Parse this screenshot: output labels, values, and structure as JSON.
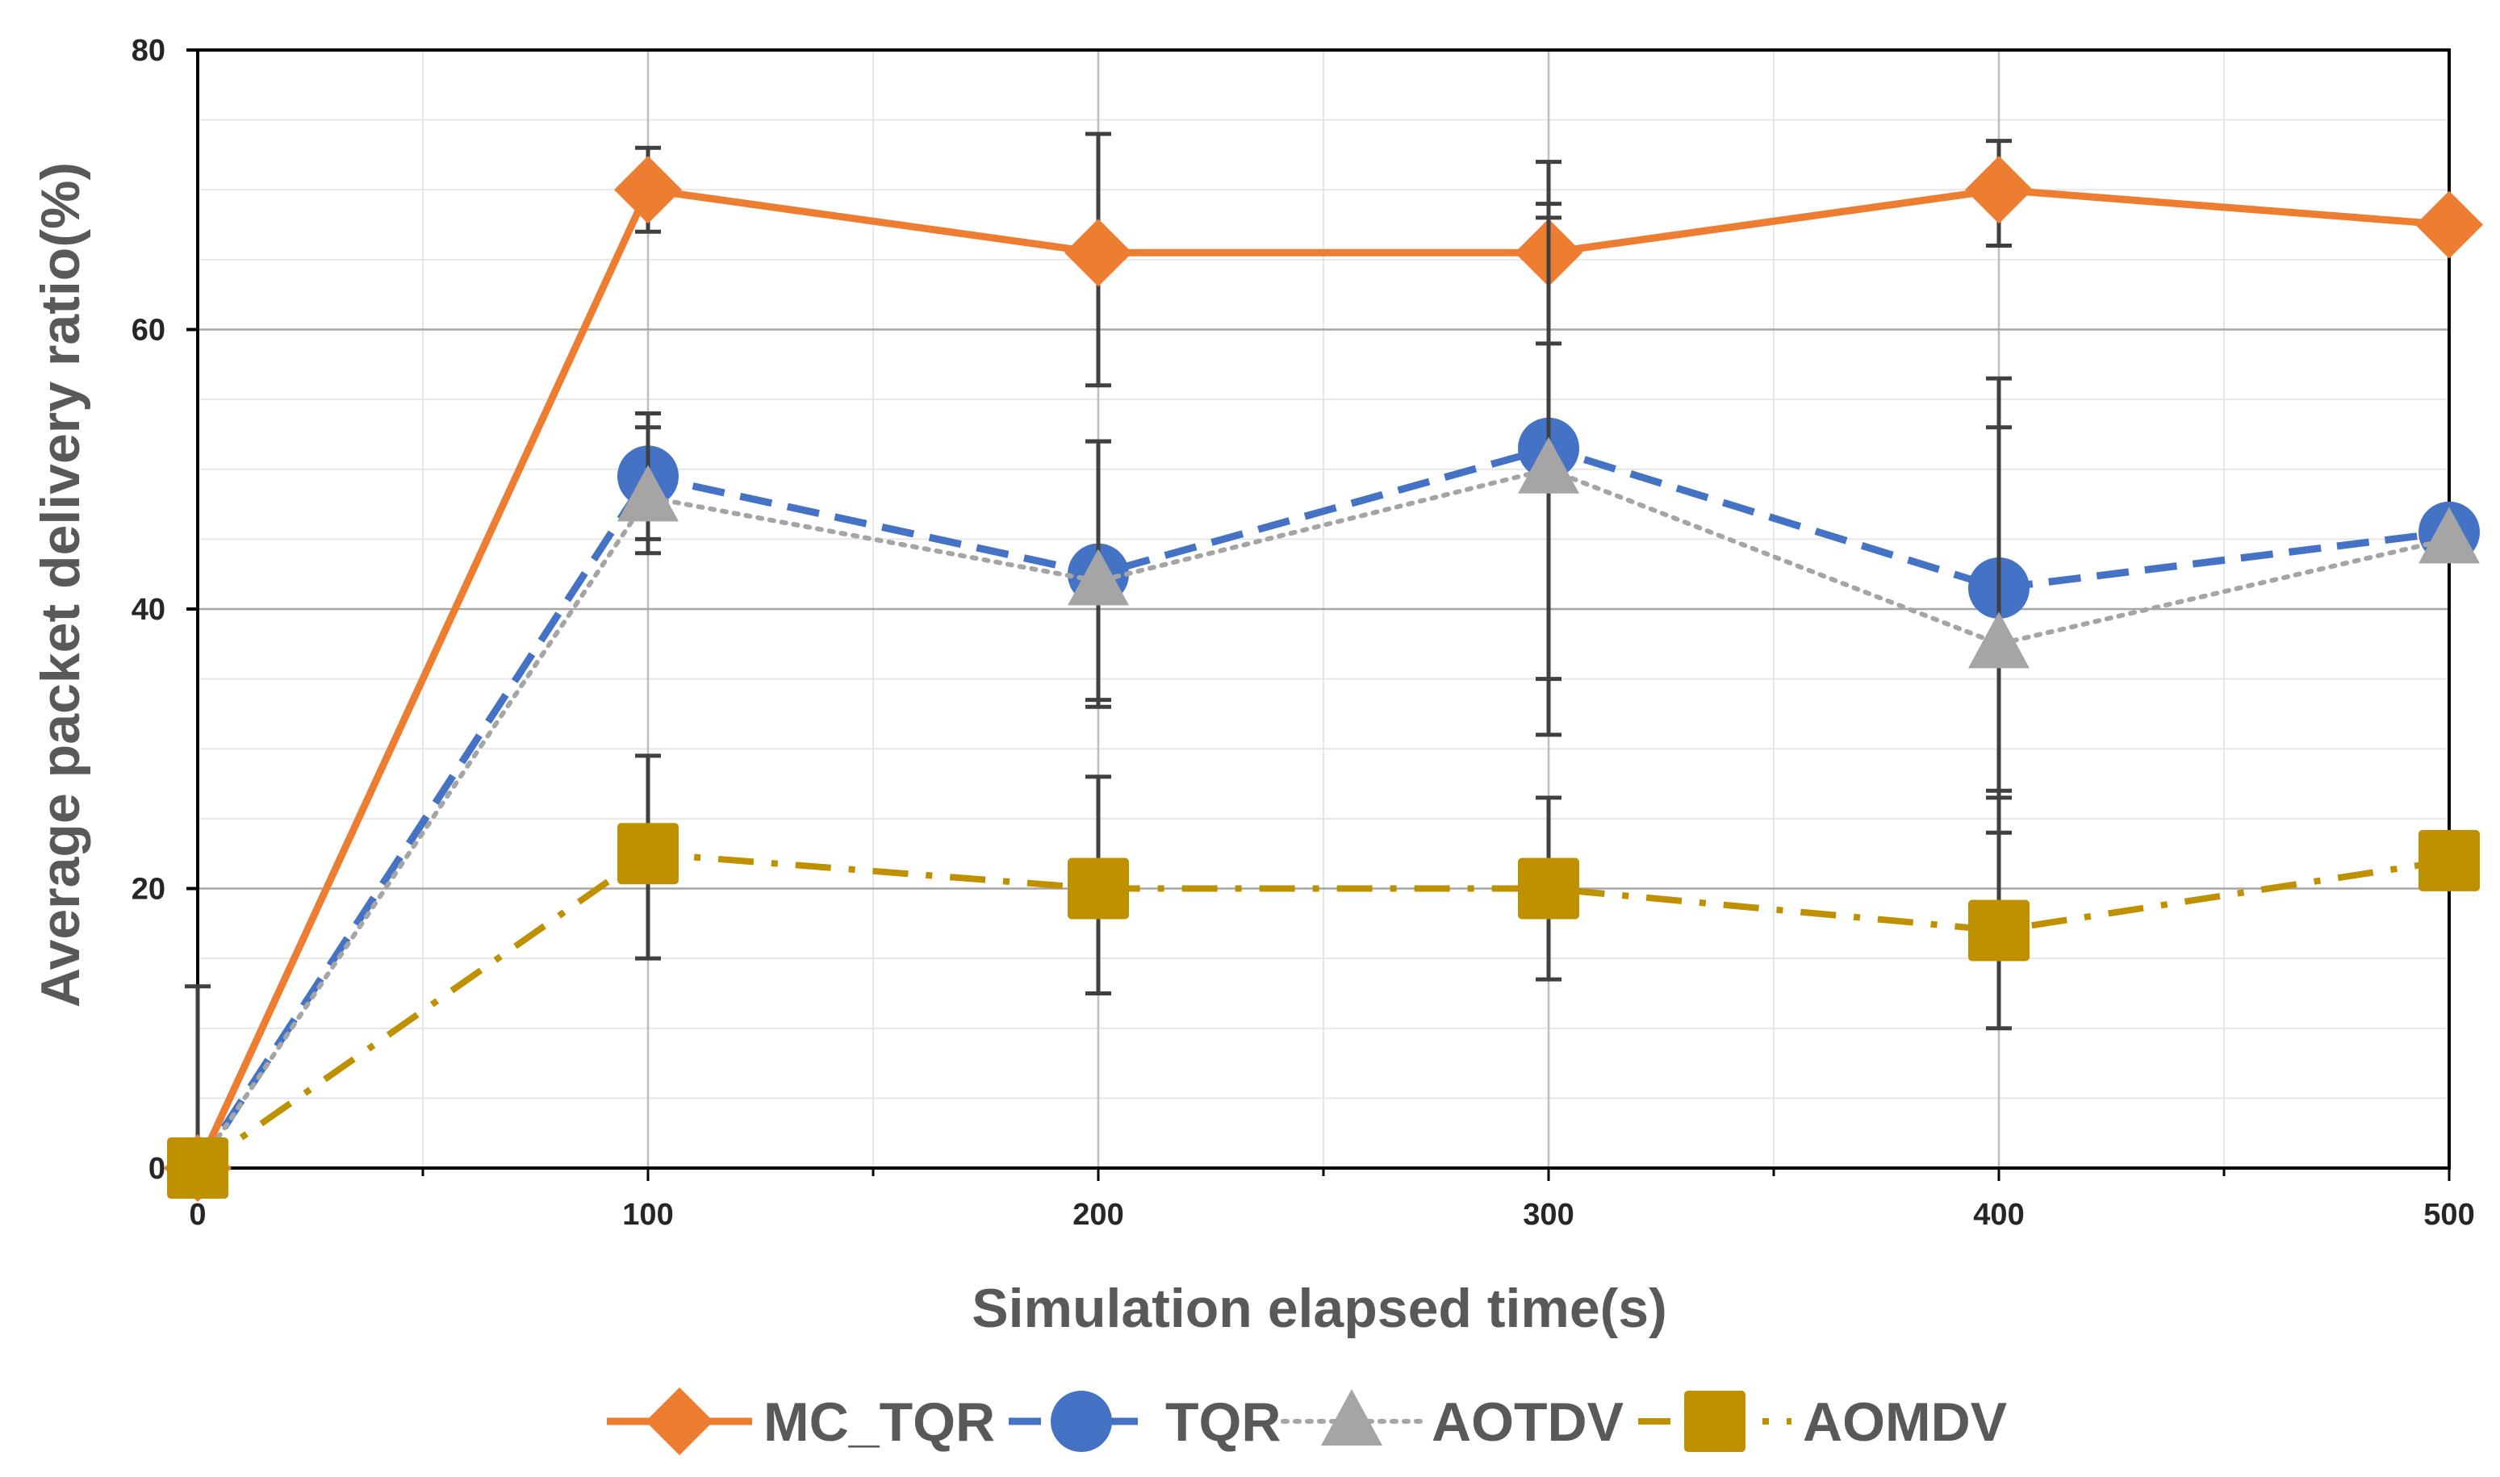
{
  "chart_data": {
    "type": "line",
    "title": "",
    "xlabel": "Simulation elapsed time(s)",
    "ylabel": "Average packet delivery ratio(%)",
    "x": [
      0,
      100,
      200,
      300,
      400,
      500
    ],
    "xlim": [
      0,
      500
    ],
    "ylim": [
      0,
      80
    ],
    "x_ticks": [
      0,
      100,
      200,
      300,
      400,
      500
    ],
    "y_ticks": [
      0,
      20,
      40,
      60,
      80
    ],
    "x_tick_labels": [
      "0",
      "100",
      "200",
      "300",
      "400",
      "500"
    ],
    "y_tick_labels": [
      "0",
      "20",
      "40",
      "60",
      "80"
    ],
    "x_minor_step": 50,
    "y_minor_step": 5,
    "grid": true,
    "legend_position": "bottom",
    "series": [
      {
        "name": "MC_TQR",
        "values": [
          0,
          70,
          65.5,
          65.5,
          70,
          67.5
        ],
        "err_upper": [
          13,
          73,
          74,
          72,
          73.5,
          null
        ],
        "err_lower": [
          0,
          67,
          56,
          59,
          66,
          null
        ],
        "color": "#ED7D31",
        "line_style": "solid",
        "marker": "diamond"
      },
      {
        "name": "TQR",
        "values": [
          0,
          49.5,
          42.5,
          51.5,
          41.5,
          45.5
        ],
        "err_upper": [
          null,
          54,
          52,
          69,
          56.5,
          null
        ],
        "err_lower": [
          null,
          44,
          33.5,
          31,
          26.5,
          null
        ],
        "color": "#4472C4",
        "line_style": "dashed",
        "marker": "circle"
      },
      {
        "name": "AOTDV",
        "values": [
          0,
          48,
          42,
          50,
          37.5,
          45
        ],
        "err_upper": [
          null,
          53,
          52,
          68,
          53,
          null
        ],
        "err_lower": [
          null,
          45,
          33,
          35,
          24,
          null
        ],
        "color": "#A5A5A5",
        "line_style": "dotted",
        "marker": "triangle"
      },
      {
        "name": "AOMDV",
        "values": [
          0,
          22.5,
          20,
          20,
          17,
          22
        ],
        "err_upper": [
          null,
          29.5,
          28,
          26.5,
          27,
          null
        ],
        "err_lower": [
          null,
          15,
          12.5,
          13.5,
          10,
          null
        ],
        "color": "#BF9000",
        "line_style": "dashdot",
        "marker": "square"
      }
    ]
  }
}
